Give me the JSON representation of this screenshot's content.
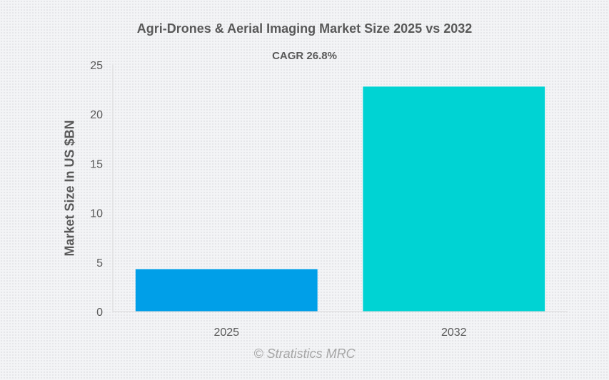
{
  "chart_data": {
    "type": "bar",
    "title": "Agri-Drones & Aerial Imaging Market Size 2025 vs 2032",
    "subtitle": "CAGR 26.8%",
    "xlabel": "",
    "ylabel": "Market Size In US $BN",
    "categories": [
      "2025",
      "2032"
    ],
    "values": [
      4.3,
      22.8
    ],
    "colors": [
      "#009fe8",
      "#00d3d3"
    ],
    "ylim": [
      0,
      25
    ],
    "yticks": [
      0,
      5,
      10,
      15,
      20,
      25
    ],
    "grid": false,
    "legend": "none"
  },
  "credit": "© Stratistics MRC"
}
